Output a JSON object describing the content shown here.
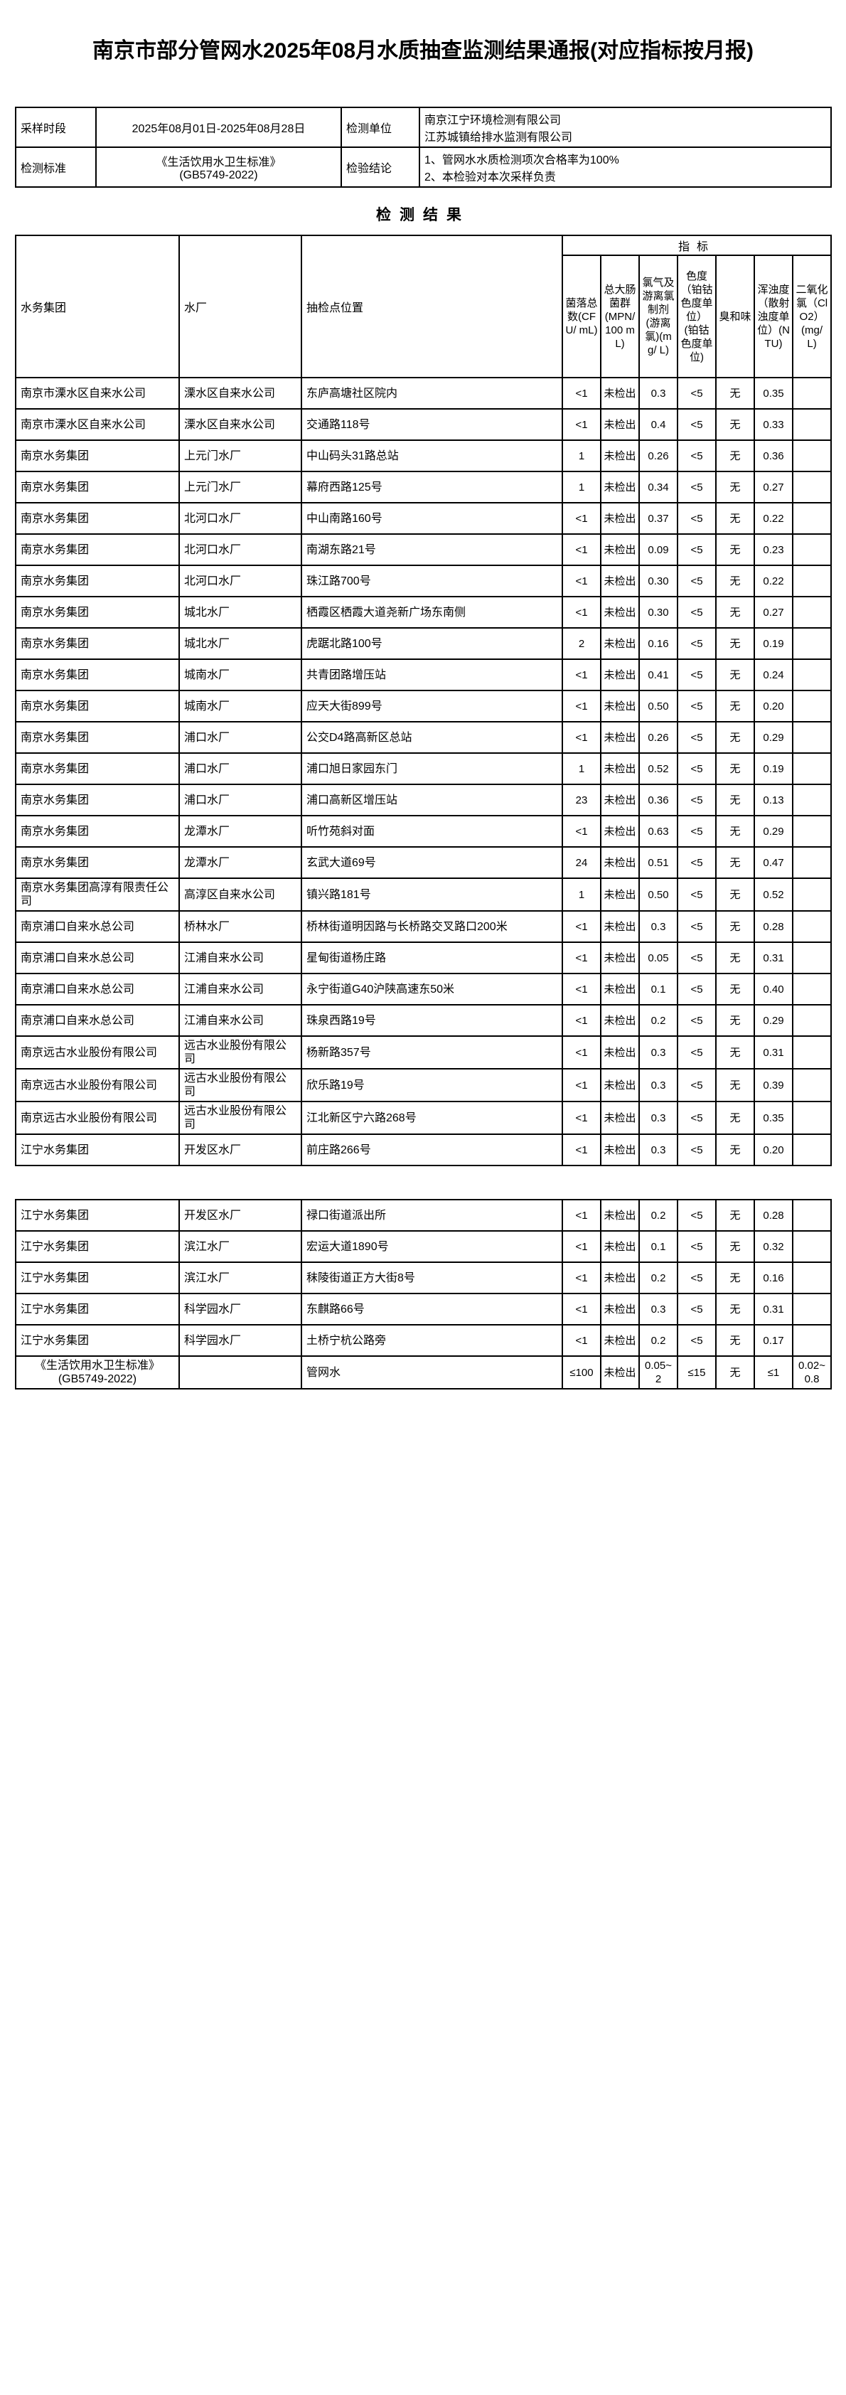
{
  "page": {
    "title": "南京市部分管网水2025年08月水质抽查监测结果通报(对应指标按月报)",
    "section_title": "检测结果"
  },
  "info": {
    "sampling_period_label": "采样时段",
    "sampling_period": "2025年08月01日-2025年08月28日",
    "testing_unit_label": "检测单位",
    "testing_unit_lines": [
      "南京江宁环境检测有限公司",
      "江苏城镇给排水监测有限公司"
    ],
    "standard_label": "检测标准",
    "standard_lines": [
      "《生活饮用水卫生标准》",
      "(GB5749-2022)"
    ],
    "conclusion_label": "检验结论",
    "conclusion_lines": [
      "1、管网水水质检测项次合格率为100%",
      "2、本检验对本次采样负责"
    ]
  },
  "table": {
    "indicators_header": "指标",
    "columns": [
      "水务集团",
      "水厂",
      "抽检点位置"
    ],
    "indicator_columns": [
      "菌落总数(CFU/ mL)",
      "总大肠菌群(MPN/ 100 mL)",
      "氯气及游离氯制剂(游离氯)(mg/ L)",
      "色度（铂钴色度单位）(铂钴色度单位)",
      "臭和味",
      "浑浊度（散射浊度单位）(NTU)",
      "二氧化氯（ClO2）(mg/ L)"
    ],
    "rows": [
      {
        "group": "南京市溧水区自来水公司",
        "plant": "溧水区自来水公司",
        "location": "东庐高塘社区院内",
        "values": [
          "<1",
          "未检出",
          "0.3",
          "<5",
          "无",
          "0.35",
          ""
        ]
      },
      {
        "group": "南京市溧水区自来水公司",
        "plant": "溧水区自来水公司",
        "location": "交通路118号",
        "values": [
          "<1",
          "未检出",
          "0.4",
          "<5",
          "无",
          "0.33",
          ""
        ]
      },
      {
        "group": "南京水务集团",
        "plant": "上元门水厂",
        "location": "中山码头31路总站",
        "values": [
          "1",
          "未检出",
          "0.26",
          "<5",
          "无",
          "0.36",
          ""
        ]
      },
      {
        "group": "南京水务集团",
        "plant": "上元门水厂",
        "location": "幕府西路125号",
        "values": [
          "1",
          "未检出",
          "0.34",
          "<5",
          "无",
          "0.27",
          ""
        ]
      },
      {
        "group": "南京水务集团",
        "plant": "北河口水厂",
        "location": "中山南路160号",
        "values": [
          "<1",
          "未检出",
          "0.37",
          "<5",
          "无",
          "0.22",
          ""
        ]
      },
      {
        "group": "南京水务集团",
        "plant": "北河口水厂",
        "location": "南湖东路21号",
        "values": [
          "<1",
          "未检出",
          "0.09",
          "<5",
          "无",
          "0.23",
          ""
        ]
      },
      {
        "group": "南京水务集团",
        "plant": "北河口水厂",
        "location": "珠江路700号",
        "values": [
          "<1",
          "未检出",
          "0.30",
          "<5",
          "无",
          "0.22",
          ""
        ]
      },
      {
        "group": "南京水务集团",
        "plant": "城北水厂",
        "location": "栖霞区栖霞大道尧新广场东南侧",
        "values": [
          "<1",
          "未检出",
          "0.30",
          "<5",
          "无",
          "0.27",
          ""
        ]
      },
      {
        "group": "南京水务集团",
        "plant": "城北水厂",
        "location": "虎踞北路100号",
        "values": [
          "2",
          "未检出",
          "0.16",
          "<5",
          "无",
          "0.19",
          ""
        ]
      },
      {
        "group": "南京水务集团",
        "plant": "城南水厂",
        "location": "共青团路增压站",
        "values": [
          "<1",
          "未检出",
          "0.41",
          "<5",
          "无",
          "0.24",
          ""
        ]
      },
      {
        "group": "南京水务集团",
        "plant": "城南水厂",
        "location": "应天大街899号",
        "values": [
          "<1",
          "未检出",
          "0.50",
          "<5",
          "无",
          "0.20",
          ""
        ]
      },
      {
        "group": "南京水务集团",
        "plant": "浦口水厂",
        "location": "公交D4路高新区总站",
        "values": [
          "<1",
          "未检出",
          "0.26",
          "<5",
          "无",
          "0.29",
          ""
        ]
      },
      {
        "group": "南京水务集团",
        "plant": "浦口水厂",
        "location": "浦口旭日家园东门",
        "values": [
          "1",
          "未检出",
          "0.52",
          "<5",
          "无",
          "0.19",
          ""
        ]
      },
      {
        "group": "南京水务集团",
        "plant": "浦口水厂",
        "location": "浦口高新区增压站",
        "values": [
          "23",
          "未检出",
          "0.36",
          "<5",
          "无",
          "0.13",
          ""
        ]
      },
      {
        "group": "南京水务集团",
        "plant": "龙潭水厂",
        "location": "听竹苑斜对面",
        "values": [
          "<1",
          "未检出",
          "0.63",
          "<5",
          "无",
          "0.29",
          ""
        ]
      },
      {
        "group": "南京水务集团",
        "plant": "龙潭水厂",
        "location": "玄武大道69号",
        "values": [
          "24",
          "未检出",
          "0.51",
          "<5",
          "无",
          "0.47",
          ""
        ]
      },
      {
        "group": "南京水务集团高淳有限责任公司",
        "plant": "高淳区自来水公司",
        "location": "镇兴路181号",
        "values": [
          "1",
          "未检出",
          "0.50",
          "<5",
          "无",
          "0.52",
          ""
        ]
      },
      {
        "group": "南京浦口自来水总公司",
        "plant": "桥林水厂",
        "location": "桥林街道明因路与长桥路交叉路口200米",
        "values": [
          "<1",
          "未检出",
          "0.3",
          "<5",
          "无",
          "0.28",
          ""
        ]
      },
      {
        "group": "南京浦口自来水总公司",
        "plant": "江浦自来水公司",
        "location": "星甸街道杨庄路",
        "values": [
          "<1",
          "未检出",
          "0.05",
          "<5",
          "无",
          "0.31",
          ""
        ]
      },
      {
        "group": "南京浦口自来水总公司",
        "plant": "江浦自来水公司",
        "location": "永宁街道G40沪陕高速东50米",
        "values": [
          "<1",
          "未检出",
          "0.1",
          "<5",
          "无",
          "0.40",
          ""
        ]
      },
      {
        "group": "南京浦口自来水总公司",
        "plant": "江浦自来水公司",
        "location": "珠泉西路19号",
        "values": [
          "<1",
          "未检出",
          "0.2",
          "<5",
          "无",
          "0.29",
          ""
        ]
      },
      {
        "group": "南京远古水业股份有限公司",
        "plant": "远古水业股份有限公司",
        "location": "杨新路357号",
        "values": [
          "<1",
          "未检出",
          "0.3",
          "<5",
          "无",
          "0.31",
          ""
        ]
      },
      {
        "group": "南京远古水业股份有限公司",
        "plant": "远古水业股份有限公司",
        "location": "欣乐路19号",
        "values": [
          "<1",
          "未检出",
          "0.3",
          "<5",
          "无",
          "0.39",
          ""
        ]
      },
      {
        "group": "南京远古水业股份有限公司",
        "plant": "远古水业股份有限公司",
        "location": "江北新区宁六路268号",
        "values": [
          "<1",
          "未检出",
          "0.3",
          "<5",
          "无",
          "0.35",
          ""
        ]
      },
      {
        "group": "江宁水务集团",
        "plant": "开发区水厂",
        "location": "前庄路266号",
        "values": [
          "<1",
          "未检出",
          "0.3",
          "<5",
          "无",
          "0.20",
          ""
        ]
      }
    ],
    "rows2": [
      {
        "group": "江宁水务集团",
        "plant": "开发区水厂",
        "location": "禄口街道派出所",
        "values": [
          "<1",
          "未检出",
          "0.2",
          "<5",
          "无",
          "0.28",
          ""
        ]
      },
      {
        "group": "江宁水务集团",
        "plant": "滨江水厂",
        "location": "宏运大道1890号",
        "values": [
          "<1",
          "未检出",
          "0.1",
          "<5",
          "无",
          "0.32",
          ""
        ]
      },
      {
        "group": "江宁水务集团",
        "plant": "滨江水厂",
        "location": "秣陵街道正方大街8号",
        "values": [
          "<1",
          "未检出",
          "0.2",
          "<5",
          "无",
          "0.16",
          ""
        ]
      },
      {
        "group": "江宁水务集团",
        "plant": "科学园水厂",
        "location": "东麒路66号",
        "values": [
          "<1",
          "未检出",
          "0.3",
          "<5",
          "无",
          "0.31",
          ""
        ]
      },
      {
        "group": "江宁水务集团",
        "plant": "科学园水厂",
        "location": "土桥宁杭公路旁",
        "values": [
          "<1",
          "未检出",
          "0.2",
          "<5",
          "无",
          "0.17",
          ""
        ]
      },
      {
        "group": "《生活饮用水卫生标准》(GB5749-2022)",
        "plant": "",
        "location": "管网水",
        "values": [
          "≤100",
          "未检出",
          "0.05~2",
          "≤15",
          "无",
          "≤1",
          "0.02~0.8"
        ],
        "standard": true
      }
    ]
  }
}
